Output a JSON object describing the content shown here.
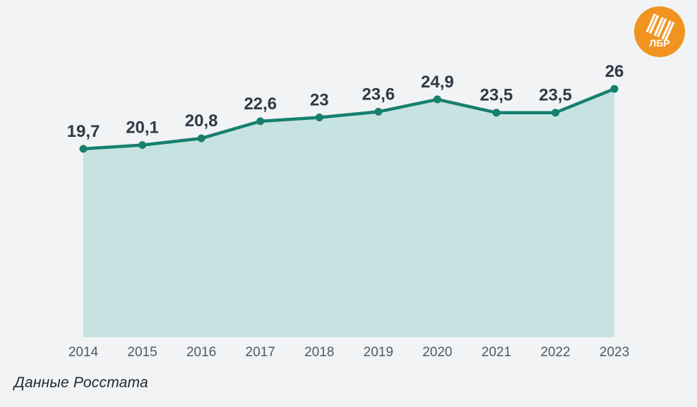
{
  "page": {
    "background": "#f1f3f5",
    "source_note": "Данные Росстата"
  },
  "logo": {
    "text": "ЛБР",
    "background": "#f0941f",
    "glyph_color": "#ffffff"
  },
  "chart_data": {
    "type": "area",
    "categories": [
      "2014",
      "2015",
      "2016",
      "2017",
      "2018",
      "2019",
      "2020",
      "2021",
      "2022",
      "2023"
    ],
    "values": [
      19.7,
      20.1,
      20.8,
      22.6,
      23,
      23.6,
      24.9,
      23.5,
      23.5,
      26
    ],
    "value_labels": [
      "19,7",
      "20,1",
      "20,8",
      "22,6",
      "23",
      "23,6",
      "24,9",
      "23,5",
      "23,5",
      "26"
    ],
    "title": "",
    "xlabel": "",
    "ylabel": "",
    "ylim": [
      0,
      26
    ],
    "grid": false,
    "legend": false,
    "line_color": "#16806e",
    "fill_color": "#c7e3e1",
    "marker_color": "#16806e",
    "value_label_color": "#2e3a45",
    "axis_label_color": "#4f5a64"
  }
}
